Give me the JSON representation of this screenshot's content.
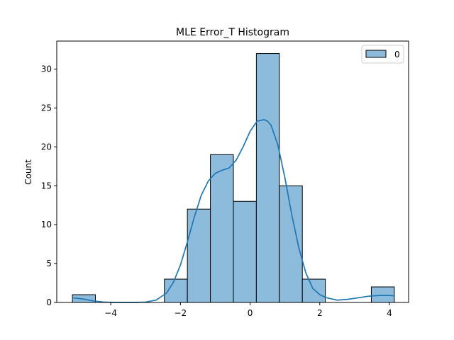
{
  "chart_data": {
    "type": "bar",
    "title": "MLE Error_T Histogram",
    "xlabel": "",
    "ylabel": "Count",
    "xlim": [
      -5.55,
      4.55
    ],
    "ylim": [
      0,
      33.6
    ],
    "x_ticks": [
      -4,
      -2,
      0,
      2,
      4
    ],
    "y_ticks": [
      0,
      5,
      10,
      15,
      20,
      25,
      30
    ],
    "grid": false,
    "legend": {
      "placement": "top-right",
      "entries": [
        "0"
      ]
    },
    "colors": {
      "bar_fill": "#8dbbdc",
      "bar_edge": "#000000",
      "kde_line": "#1f77b4"
    },
    "bins": [
      {
        "x0": -5.1,
        "x1": -4.44,
        "count": 1
      },
      {
        "x0": -4.44,
        "x1": -3.78,
        "count": 0
      },
      {
        "x0": -3.78,
        "x1": -3.12,
        "count": 0
      },
      {
        "x0": -3.12,
        "x1": -2.46,
        "count": 0
      },
      {
        "x0": -2.46,
        "x1": -1.8,
        "count": 3
      },
      {
        "x0": -1.8,
        "x1": -1.14,
        "count": 12
      },
      {
        "x0": -1.14,
        "x1": -0.48,
        "count": 19
      },
      {
        "x0": -0.48,
        "x1": 0.18,
        "count": 13
      },
      {
        "x0": 0.18,
        "x1": 0.84,
        "count": 32
      },
      {
        "x0": 0.84,
        "x1": 1.5,
        "count": 15
      },
      {
        "x0": 1.5,
        "x1": 2.16,
        "count": 3
      },
      {
        "x0": 2.16,
        "x1": 2.82,
        "count": 0
      },
      {
        "x0": 2.82,
        "x1": 3.48,
        "count": 0
      },
      {
        "x0": 3.48,
        "x1": 4.14,
        "count": 2
      }
    ],
    "kde": {
      "x": [
        -5.1,
        -4.8,
        -4.5,
        -4.2,
        -3.9,
        -3.6,
        -3.3,
        -3.0,
        -2.7,
        -2.4,
        -2.2,
        -2.0,
        -1.8,
        -1.6,
        -1.4,
        -1.2,
        -1.0,
        -0.8,
        -0.6,
        -0.4,
        -0.2,
        0.0,
        0.2,
        0.4,
        0.5,
        0.6,
        0.8,
        1.0,
        1.2,
        1.4,
        1.6,
        1.8,
        2.0,
        2.2,
        2.5,
        2.8,
        3.1,
        3.4,
        3.7,
        4.0,
        4.14
      ],
      "y": [
        0.6,
        0.45,
        0.2,
        0.05,
        0.0,
        0.0,
        0.0,
        0.05,
        0.3,
        1.2,
        2.6,
        4.8,
        7.8,
        11.0,
        13.8,
        15.6,
        16.6,
        17.0,
        17.3,
        18.3,
        20.0,
        22.0,
        23.3,
        23.5,
        23.3,
        22.8,
        20.2,
        16.0,
        11.2,
        7.0,
        3.8,
        1.8,
        1.0,
        0.6,
        0.3,
        0.4,
        0.6,
        0.8,
        0.9,
        0.9,
        0.85
      ]
    }
  }
}
